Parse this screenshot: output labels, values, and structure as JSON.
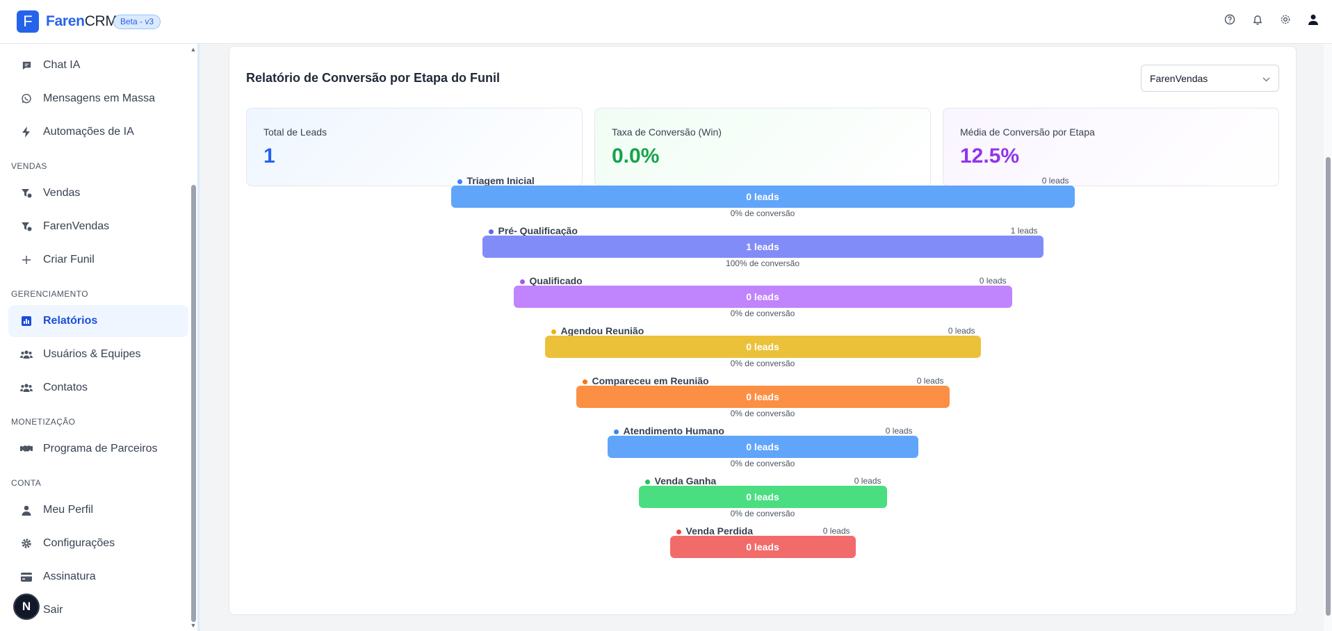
{
  "app": {
    "logo_letter": "F",
    "brand_main": "Faren",
    "brand_suffix": "CRM",
    "badge": "Beta - v3"
  },
  "topbar_icons": [
    "help-icon",
    "bell-icon",
    "gear-icon",
    "user-icon"
  ],
  "sidebar": {
    "items": [
      {
        "label": "Chat IA",
        "icon": "chat-icon"
      },
      {
        "label": "Mensagens em Massa",
        "icon": "whatsapp-icon"
      },
      {
        "label": "Automações de IA",
        "icon": "bolt-icon"
      },
      {
        "label": "Vendas",
        "icon": "funnel-icon"
      },
      {
        "label": "FarenVendas",
        "icon": "funnel-icon"
      },
      {
        "label": "Criar Funil",
        "icon": "plus-icon"
      },
      {
        "label": "Relatórios",
        "icon": "chart-icon",
        "active": true
      },
      {
        "label": "Usuários & Equipes",
        "icon": "users-icon"
      },
      {
        "label": "Contatos",
        "icon": "users-icon"
      },
      {
        "label": "Programa de Parceiros",
        "icon": "handshake-icon"
      },
      {
        "label": "Meu Perfil",
        "icon": "user-icon"
      },
      {
        "label": "Configurações",
        "icon": "gear-icon"
      },
      {
        "label": "Assinatura",
        "icon": "card-icon"
      },
      {
        "label": "Sair",
        "icon": "logout-icon"
      }
    ],
    "sections": [
      "VENDAS",
      "GERENCIAMENTO",
      "MONETIZAÇÃO",
      "CONTA"
    ],
    "avatar_letter": "N"
  },
  "report": {
    "title": "Relatório de Conversão por Etapa do Funil",
    "selected_funnel": "FarenVendas",
    "stats": [
      {
        "label": "Total de Leads",
        "value": "1"
      },
      {
        "label": "Taxa de Conversão (Win)",
        "value": "0.0%"
      },
      {
        "label": "Média de Conversão por Etapa",
        "value": "12.5%"
      }
    ]
  },
  "chart_data": {
    "type": "bar",
    "stages": [
      {
        "name": "Triagem Inicial",
        "count_label": "0 leads",
        "bar_label": "0 leads",
        "conversion": "0% de conversão",
        "color": "#60a5fa"
      },
      {
        "name": "Pré- Qualificação",
        "count_label": "1 leads",
        "bar_label": "1 leads",
        "conversion": "100% de conversão",
        "color": "#818cf8"
      },
      {
        "name": "Qualificado",
        "count_label": "0 leads",
        "bar_label": "0 leads",
        "conversion": "0% de conversão",
        "color": "#c084fc"
      },
      {
        "name": "Agendou Reunião",
        "count_label": "0 leads",
        "bar_label": "0 leads",
        "conversion": "0% de conversão",
        "color": "#ecc13a"
      },
      {
        "name": "Compareceu em Reunião",
        "count_label": "0 leads",
        "bar_label": "0 leads",
        "conversion": "0% de conversão",
        "color": "#fb8f44"
      },
      {
        "name": "Atendimento Humano",
        "count_label": "0 leads",
        "bar_label": "0 leads",
        "conversion": "0% de conversão",
        "color": "#60a5fa"
      },
      {
        "name": "Venda Ganha",
        "count_label": "0 leads",
        "bar_label": "0 leads",
        "conversion": "0% de conversão",
        "color": "#4ade80"
      },
      {
        "name": "Venda Perdida",
        "count_label": "0 leads",
        "bar_label": "0 leads",
        "color": "#f26b6b"
      }
    ],
    "dot_colors": [
      "#3b82f6",
      "#6366f1",
      "#a855f7",
      "#eab308",
      "#f97316",
      "#3b82f6",
      "#22c55e",
      "#ef4444"
    ]
  }
}
